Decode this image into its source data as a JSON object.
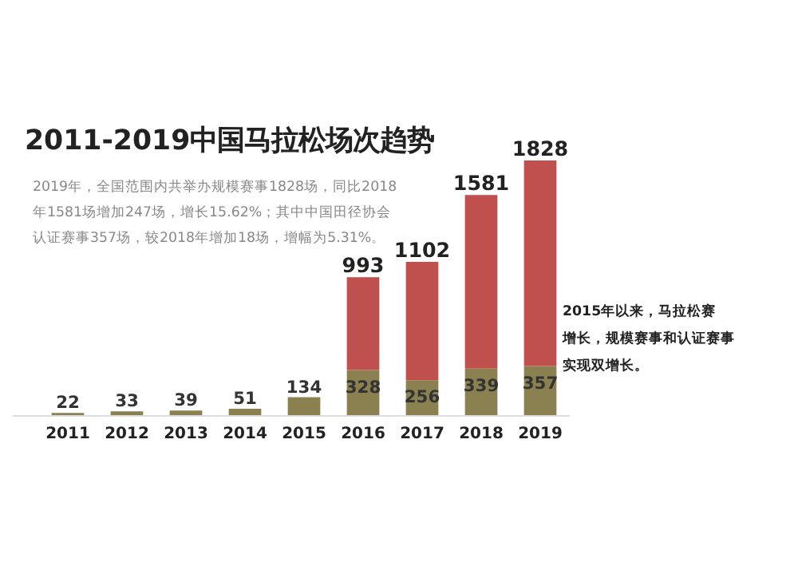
{
  "chart_data": {
    "type": "bar",
    "stacked": true,
    "title": "2011-2019中国马拉松场次趋势",
    "categories": [
      "2011",
      "2012",
      "2013",
      "2014",
      "2015",
      "2016",
      "2017",
      "2018",
      "2019"
    ],
    "series": [
      {
        "color": "#8b8150",
        "values": [
          22,
          33,
          39,
          51,
          134,
          328,
          256,
          339,
          357
        ],
        "value_labels": [
          "22",
          "33",
          "39",
          "51",
          "134",
          "328",
          "256",
          "339",
          "357"
        ]
      },
      {
        "color": "#c0504d",
        "values": [
          null,
          null,
          null,
          null,
          null,
          665,
          846,
          1242,
          1471
        ]
      }
    ],
    "totals": [
      null,
      null,
      null,
      null,
      null,
      "993",
      "1102",
      "1581",
      "1828"
    ],
    "annotations": [
      "2019年，全国范围内共举办规模赛事1828场，同比2018",
      "年1581场增加247场，增长15.62%；其中中国田径协会",
      "认证赛事357场，较2018年增加18场，增幅为5.31%。",
      "2015年以来，马拉松赛",
      "增长，规模赛事和认证赛事",
      "实现双增长。"
    ]
  }
}
